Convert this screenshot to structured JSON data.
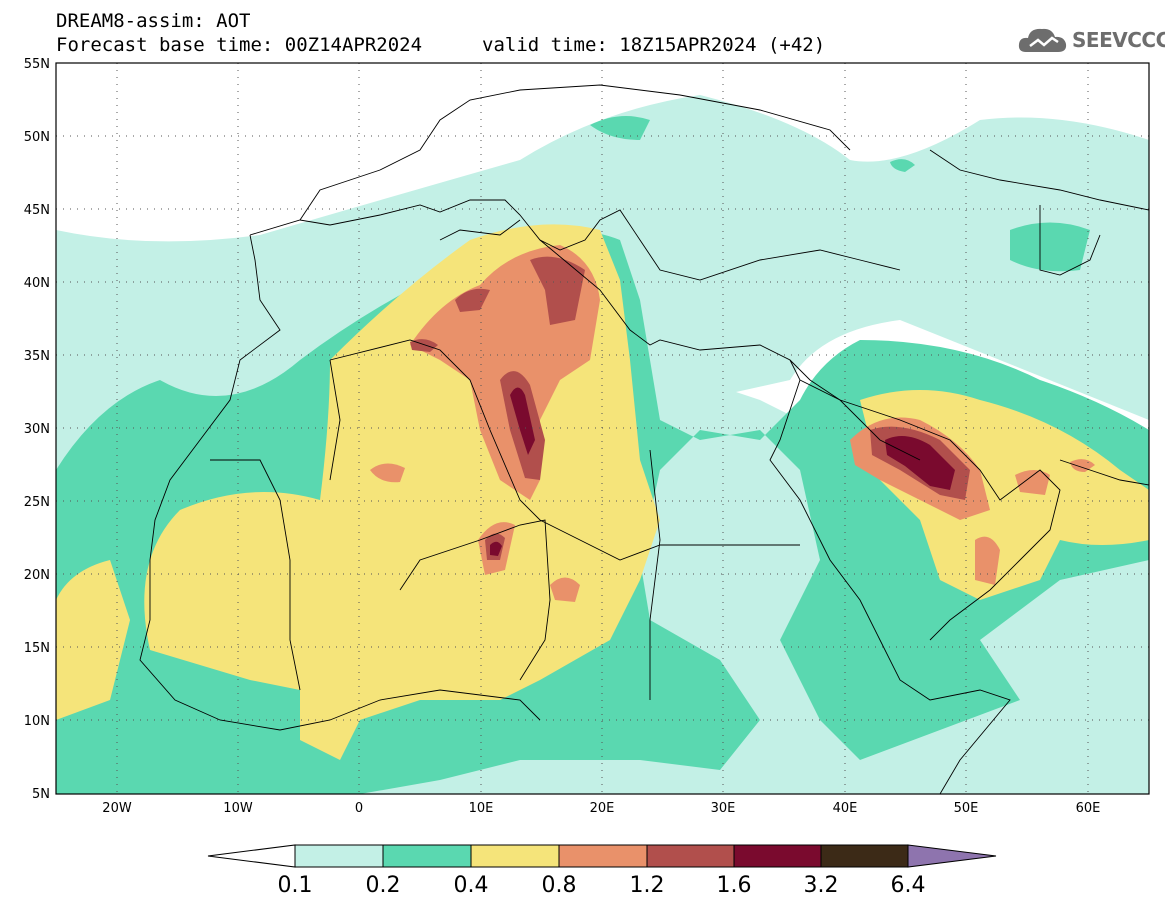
{
  "header": {
    "line1": "DREAM8-assim: AOT",
    "line2": "Forecast base time: 00Z14APR2024",
    "valid": "valid time: 18Z15APR2024 (+42)"
  },
  "logo": {
    "text": "SEEVCCC",
    "icon": "cloud-icon"
  },
  "map": {
    "extent": {
      "lon_min": -25,
      "lon_max": 65,
      "lat_min": 5,
      "lat_max": 55
    },
    "lat_ticks": [
      "55N",
      "50N",
      "45N",
      "40N",
      "35N",
      "30N",
      "25N",
      "20N",
      "15N",
      "10N",
      "5N"
    ],
    "lon_ticks": [
      "20W",
      "10W",
      "0",
      "10E",
      "20E",
      "30E",
      "40E",
      "50E",
      "60E"
    ],
    "gridlines": "dotted"
  },
  "colorbar": {
    "labels": [
      "0.1",
      "0.2",
      "0.4",
      "0.8",
      "1.2",
      "1.6",
      "3.2",
      "6.4"
    ],
    "colors": [
      "#ffffff",
      "#c3f0e6",
      "#5ad8b0",
      "#f5e47a",
      "#e9916a",
      "#b14f4c",
      "#7a0a2e",
      "#3c2a17",
      "#8e74ae"
    ]
  }
}
